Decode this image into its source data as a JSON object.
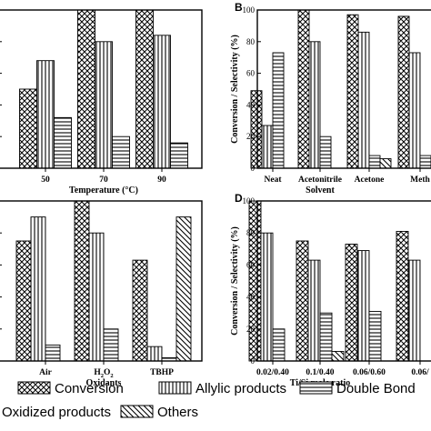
{
  "legend": [
    {
      "name": "Conversion",
      "pattern": "cross"
    },
    {
      "name": "Allylic products",
      "pattern": "vert"
    },
    {
      "name": "Double Bond",
      "pattern": "horiz"
    },
    {
      "name": "Oxidized products",
      "pattern": "none"
    },
    {
      "name": "Others",
      "pattern": "diag"
    }
  ],
  "chart_data": [
    {
      "type": "bar",
      "panel": "A",
      "panel_label": "",
      "categories": [
        "50",
        "70",
        "90"
      ],
      "xlabel": "Temperature (°C)",
      "ylabel": "",
      "ylim": [
        0,
        100
      ],
      "yticks": [],
      "series": [
        {
          "name": "Conversion",
          "values": [
            50,
            100,
            100
          ]
        },
        {
          "name": "Allylic products",
          "values": [
            68,
            80,
            84
          ]
        },
        {
          "name": "Double Bond",
          "values": [
            32,
            20,
            16
          ]
        }
      ]
    },
    {
      "type": "bar",
      "panel": "B",
      "panel_label": "B",
      "categories": [
        "Neat",
        "Acetonitrile",
        "Acetone",
        "Meth"
      ],
      "xlabel": "Solvent",
      "ylabel": "Conversion / Selectivity (%)",
      "ylim": [
        0,
        100
      ],
      "yticks": [
        "0",
        "20",
        "40",
        "60",
        "80",
        "100"
      ],
      "series": [
        {
          "name": "Conversion",
          "values": [
            49,
            100,
            97,
            96
          ]
        },
        {
          "name": "Allylic products",
          "values": [
            27,
            80,
            86,
            73
          ]
        },
        {
          "name": "Double Bond",
          "values": [
            73,
            20,
            8,
            8
          ]
        },
        {
          "name": "Others",
          "values": [
            0,
            0,
            6,
            5
          ]
        }
      ]
    },
    {
      "type": "bar",
      "panel": "C",
      "panel_label": "",
      "categories": [
        "Air",
        "H2O2",
        "TBHP"
      ],
      "xlabel": "Oxidants",
      "ylabel": "",
      "ylim": [
        0,
        100
      ],
      "yticks": [],
      "series": [
        {
          "name": "Conversion",
          "values": [
            75,
            100,
            63
          ]
        },
        {
          "name": "Allylic products",
          "values": [
            90,
            80,
            9
          ]
        },
        {
          "name": "Double Bond",
          "values": [
            10,
            20,
            2
          ]
        },
        {
          "name": "Others",
          "values": [
            0,
            0,
            90
          ]
        }
      ]
    },
    {
      "type": "bar",
      "panel": "D",
      "panel_label": "D",
      "categories": [
        "0.02/0.40",
        "0.1/0.40",
        "0.06/0.60",
        "0.06/"
      ],
      "xlabel": "Ti/Si mole ratio",
      "ylabel": "Conversion / Selectivity (%)",
      "ylim": [
        0,
        100
      ],
      "yticks": [
        "0",
        "20",
        "40",
        "60",
        "80",
        "100"
      ],
      "series": [
        {
          "name": "Conversion",
          "values": [
            100,
            75,
            73,
            81
          ]
        },
        {
          "name": "Allylic products",
          "values": [
            80,
            63,
            69,
            63
          ]
        },
        {
          "name": "Double Bond",
          "values": [
            20,
            30,
            31,
            0
          ]
        },
        {
          "name": "Others",
          "values": [
            0,
            6,
            0,
            0
          ]
        }
      ]
    }
  ]
}
